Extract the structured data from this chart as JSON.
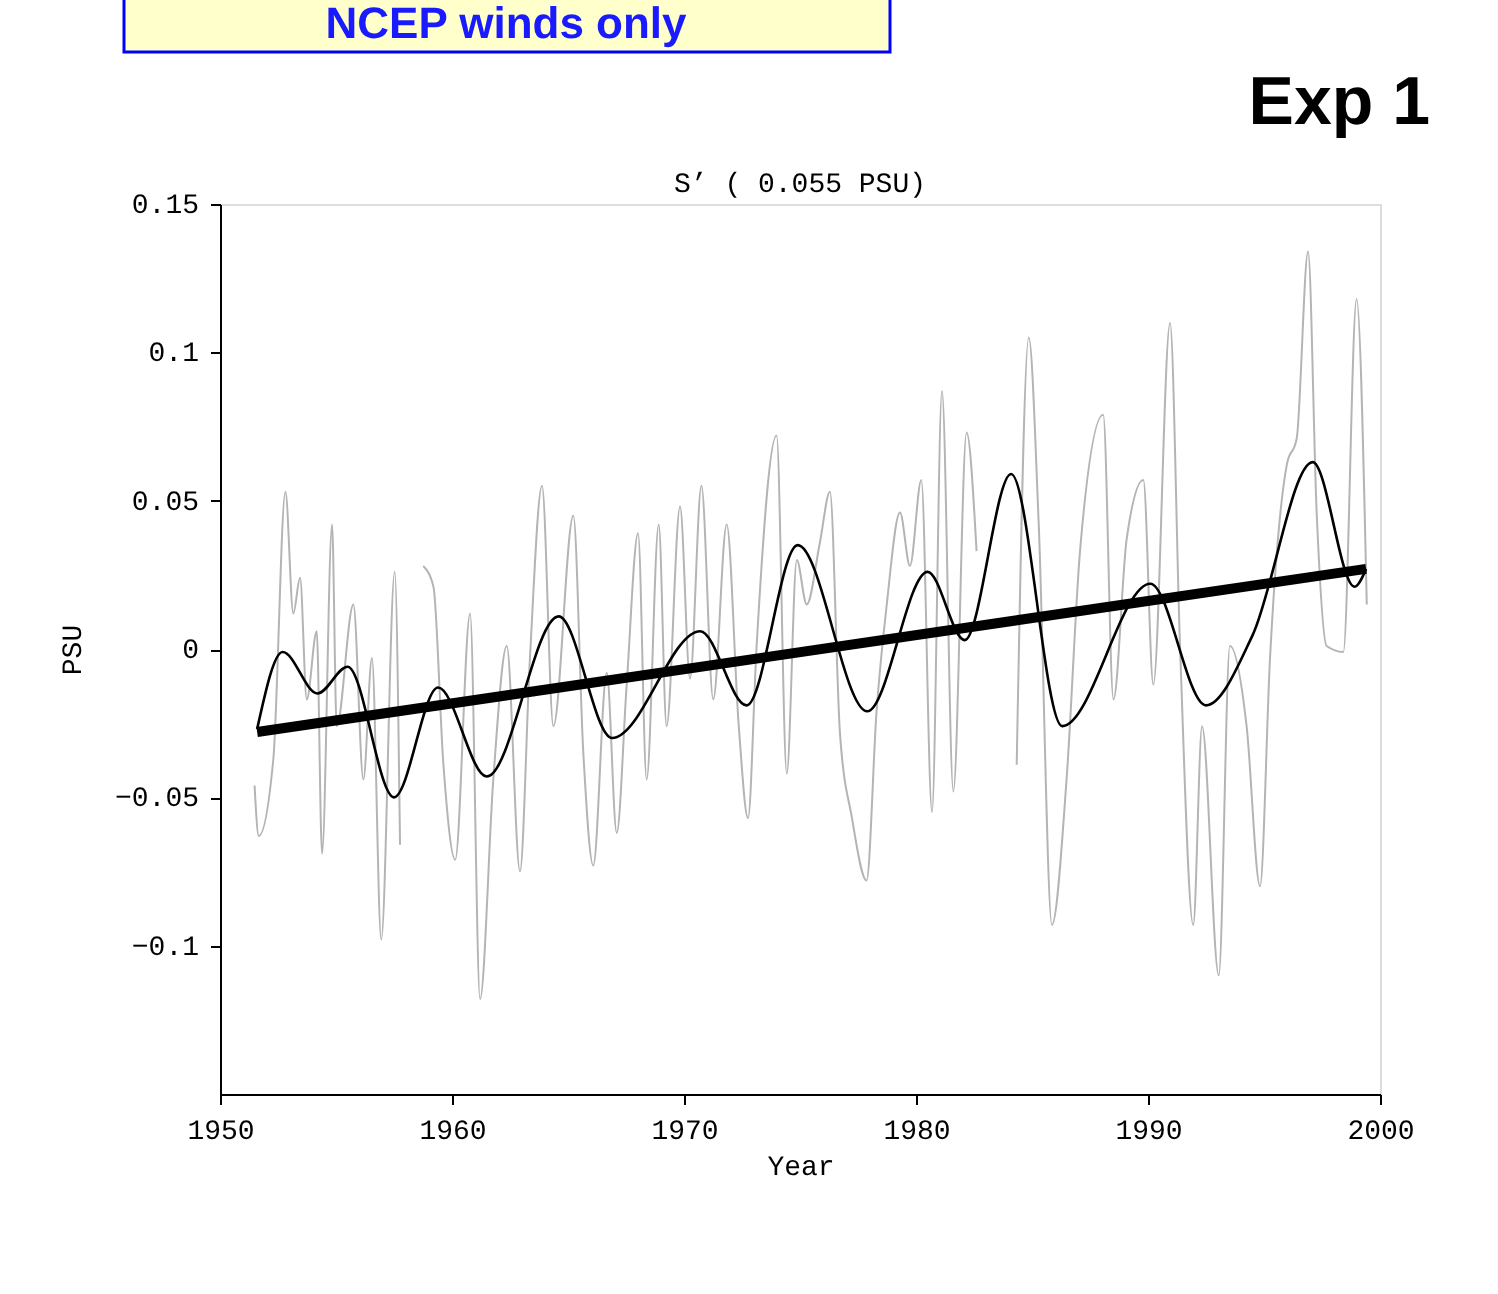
{
  "chart_data": {
    "type": "line",
    "title": "S’ (      0.055 PSU)",
    "xlabel": "Year",
    "ylabel": "PSU",
    "annotations": [
      "NCEP winds only",
      "Exp 1"
    ],
    "xlim": [
      1950,
      2000
    ],
    "xticks": [
      1950,
      1960,
      1970,
      1980,
      1990,
      2000
    ],
    "ylim": [
      -0.15,
      0.15
    ],
    "yticks": [
      {
        "value": -0.1,
        "label": "−0.1"
      },
      {
        "value": -0.05,
        "label": "−0.05"
      },
      0,
      0.05,
      0.1,
      0.15
    ],
    "grid": false,
    "series": [
      {
        "color": "#b4b4b4",
        "x": [
          1951.49,
          1951.67,
          1952.3,
          1952.82,
          1953.16,
          1953.45,
          1953.74,
          1954.17,
          1954.4,
          1954.83,
          1955.03,
          1955.75,
          1956.18,
          1956.55,
          1956.95,
          1957.53,
          1957.76,
          1958.28,
          1958.76,
          1959.2,
          1959.63,
          1960.14,
          1960.78,
          1961.21,
          1961.78,
          1962.36,
          1962.93,
          1963.36,
          1963.88,
          1964.37,
          1965.23,
          1965.66,
          1966.09,
          1966.67,
          1967.1,
          1967.53,
          1968.02,
          1968.39,
          1968.91,
          1969.25,
          1969.83,
          1970.26,
          1970.75,
          1971.26,
          1971.84,
          1972.36,
          1972.76,
          1973.13,
          1973.99,
          1974.43,
          1974.86,
          1975.29,
          1975.86,
          1976.29,
          1976.72,
          1977.24,
          1977.87,
          1978.3,
          1978.74,
          1979.31,
          1979.74,
          1980.23,
          1980.69,
          1981.12,
          1981.61,
          1982.18,
          1982.61,
          1982.9,
          1983.91,
          1984.34,
          1984.86,
          1985.29,
          1985.86,
          1986.49,
          1987.07,
          1988.07,
          1988.51,
          1989.08,
          1989.8,
          1990.23,
          1990.95,
          1991.38,
          1991.95,
          1992.33,
          1993.05,
          1993.53,
          1994.25,
          1994.83,
          1995.26,
          1995.98,
          1996.41,
          1996.9,
          1997.27,
          1997.7,
          1998.42,
          1998.99,
          1999.43
        ],
        "values": [
          -0.046,
          -0.063,
          -0.037,
          0.053,
          0.012,
          0.024,
          -0.017,
          0.006,
          -0.069,
          0.042,
          -0.026,
          0.015,
          -0.044,
          -0.003,
          -0.098,
          0.026,
          -0.066,
          null,
          0.028,
          0.021,
          -0.039,
          -0.071,
          0.012,
          -0.118,
          -0.044,
          0.001,
          -0.075,
          -0.003,
          0.055,
          -0.026,
          0.045,
          -0.035,
          -0.073,
          -0.008,
          -0.062,
          -0.012,
          0.039,
          -0.044,
          0.042,
          -0.026,
          0.048,
          -0.01,
          0.055,
          -0.017,
          0.042,
          -0.026,
          -0.057,
          0.001,
          0.072,
          -0.042,
          0.03,
          0.015,
          0.036,
          0.053,
          -0.028,
          -0.057,
          -0.078,
          -0.021,
          0.015,
          0.046,
          0.028,
          0.057,
          -0.055,
          0.087,
          -0.048,
          0.073,
          0.033,
          null,
          null,
          -0.039,
          0.105,
          0.042,
          -0.093,
          -0.044,
          0.033,
          0.079,
          -0.017,
          0.037,
          0.057,
          -0.012,
          0.11,
          0.001,
          -0.093,
          -0.026,
          -0.11,
          0.001,
          -0.026,
          -0.08,
          -0.003,
          0.062,
          0.071,
          0.134,
          0.046,
          0.001,
          -0.001,
          0.118,
          0.015
        ]
      },
      {
        "color": "#000000",
        "x": [
          1951.6,
          1952.7,
          1954.2,
          1955.5,
          1957.5,
          1959.4,
          1961.5,
          1964.6,
          1966.9,
          1970.7,
          1972.7,
          1974.9,
          1977.9,
          1980.5,
          1982.1,
          1984.1,
          1986.3,
          1990.1,
          1992.5,
          1994.5,
          1997.1,
          1998.9,
          1999.4
        ],
        "values": [
          -0.027,
          -0.001,
          -0.015,
          -0.006,
          -0.05,
          -0.013,
          -0.043,
          0.011,
          -0.03,
          0.006,
          -0.019,
          0.035,
          -0.021,
          0.026,
          0.003,
          0.059,
          -0.026,
          0.022,
          -0.019,
          0.0045,
          0.063,
          0.021,
          0.027
        ]
      },
      {
        "color": "#000000",
        "x": [
          1951.6,
          1999.4
        ],
        "values": [
          -0.028,
          0.027
        ]
      }
    ]
  }
}
